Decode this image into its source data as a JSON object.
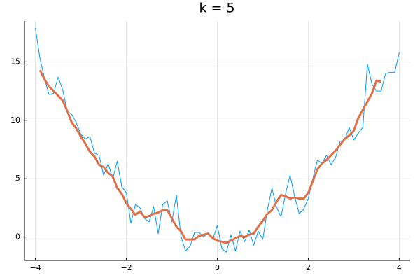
{
  "chart_data": {
    "type": "line",
    "title": "k = 5",
    "series": [
      {
        "color": "#009af9",
        "width": 1,
        "x": [
          -4.0,
          -3.9,
          -3.8,
          -3.7,
          -3.6,
          -3.5,
          -3.4,
          -3.3,
          -3.2,
          -3.1,
          -3.0,
          -2.9,
          -2.8,
          -2.7,
          -2.6,
          -2.5,
          -2.4,
          -2.3,
          -2.2,
          -2.1,
          -2.0,
          -1.9,
          -1.8,
          -1.7,
          -1.6,
          -1.5,
          -1.4,
          -1.3,
          -1.2,
          -1.1,
          -1.0,
          -0.9,
          -0.8,
          -0.7,
          -0.6,
          -0.5,
          -0.4,
          -0.3,
          -0.2,
          -0.1,
          0.0,
          0.1,
          0.2,
          0.3,
          0.4,
          0.5,
          0.6,
          0.7,
          0.8,
          0.9,
          1.0,
          1.1,
          1.2,
          1.3,
          1.4,
          1.5,
          1.6,
          1.7,
          1.8,
          1.9,
          2.0,
          2.1,
          2.2,
          2.3,
          2.4,
          2.5,
          2.6,
          2.7,
          2.8,
          2.9,
          3.0,
          3.1,
          3.2,
          3.3,
          3.4,
          3.5,
          3.6,
          3.7,
          3.8,
          3.9,
          4.0
        ],
        "values": [
          17.9,
          15.3,
          13.6,
          12.2,
          12.3,
          13.7,
          12.6,
          10.8,
          10.5,
          9.8,
          8.8,
          8.4,
          8.6,
          7.2,
          7.0,
          5.3,
          6.3,
          5.0,
          6.5,
          4.3,
          3.8,
          1.2,
          2.8,
          2.5,
          1.6,
          1.3,
          2.6,
          0.3,
          2.8,
          3.1,
          1.3,
          3.6,
          0.1,
          -1.2,
          -0.8,
          0.4,
          0.4,
          0.0,
          0.4,
          -0.2,
          1.0,
          -1.0,
          -1.3,
          0.2,
          -1.2,
          0.5,
          -0.4,
          0.6,
          -0.7,
          0.5,
          -0.2,
          2.3,
          4.2,
          2.6,
          1.7,
          3.7,
          5.3,
          3.5,
          2.0,
          2.4,
          3.3,
          5.0,
          6.6,
          6.3,
          7.0,
          6.2,
          6.8,
          8.2,
          8.3,
          9.4,
          8.3,
          8.9,
          9.4,
          14.8,
          13.1,
          12.5,
          12.5,
          14.0,
          14.1,
          14.1,
          15.8
        ]
      },
      {
        "color": "#e26f46",
        "width": 3,
        "x": [
          -3.9,
          -3.8,
          -3.7,
          -3.6,
          -3.5,
          -3.4,
          -3.3,
          -3.2,
          -3.1,
          -3.0,
          -2.9,
          -2.8,
          -2.7,
          -2.6,
          -2.5,
          -2.4,
          -2.3,
          -2.2,
          -2.1,
          -2.0,
          -1.9,
          -1.8,
          -1.7,
          -1.6,
          -1.5,
          -1.4,
          -1.3,
          -1.2,
          -1.1,
          -1.0,
          -0.9,
          -0.8,
          -0.7,
          -0.6,
          -0.5,
          -0.4,
          -0.3,
          -0.2,
          -0.1,
          0.0,
          0.1,
          0.2,
          0.3,
          0.4,
          0.5,
          0.6,
          0.7,
          0.8,
          0.9,
          1.0,
          1.1,
          1.2,
          1.3,
          1.4,
          1.5,
          1.6,
          1.7,
          1.8,
          1.9,
          2.0,
          2.1,
          2.2,
          2.3,
          2.4,
          2.5,
          2.6,
          2.7,
          2.8,
          2.9,
          3.0,
          3.1,
          3.2,
          3.3,
          3.4,
          3.5,
          3.6
        ],
        "values": [
          14.3,
          13.5,
          12.9,
          12.5,
          12.1,
          11.7,
          10.8,
          9.8,
          9.3,
          8.6,
          8.0,
          7.3,
          6.9,
          6.2,
          6.0,
          5.5,
          5.2,
          4.2,
          3.7,
          2.9,
          2.4,
          1.9,
          2.2,
          1.7,
          1.8,
          2.0,
          2.1,
          2.3,
          2.3,
          1.6,
          0.9,
          0.5,
          -0.2,
          -0.2,
          -0.2,
          0.1,
          0.2,
          0.3,
          -0.1,
          -0.3,
          -0.4,
          -0.5,
          -0.3,
          -0.1,
          0.1,
          0.0,
          0.2,
          0.3,
          0.9,
          1.4,
          2.0,
          2.3,
          3.0,
          3.6,
          3.5,
          3.3,
          3.4,
          3.3,
          3.3,
          3.8,
          4.8,
          5.8,
          6.3,
          6.6,
          7.0,
          7.4,
          7.9,
          8.4,
          8.7,
          9.1,
          10.2,
          10.9,
          11.6,
          12.3,
          13.4,
          13.3
        ]
      }
    ],
    "xlim": [
      -4.24,
      4.24
    ],
    "ylim": [
      -2,
      18.5
    ],
    "xticks": [
      {
        "value": -4,
        "label": "−4"
      },
      {
        "value": -2,
        "label": "−2"
      },
      0,
      2,
      4
    ],
    "yticks": [
      0,
      5,
      10,
      15
    ],
    "grid": true
  }
}
